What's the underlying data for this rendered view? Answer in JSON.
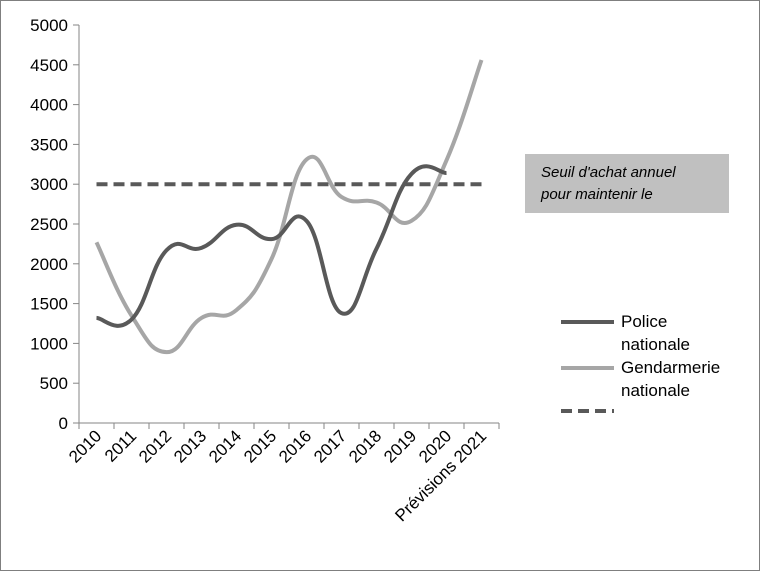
{
  "chart_data": {
    "type": "line",
    "categories": [
      "2010",
      "2011",
      "2012",
      "2013",
      "2014",
      "2015",
      "2016",
      "2017",
      "2018",
      "2019",
      "2020",
      "Prévisions 2021"
    ],
    "ylim": [
      0,
      5000
    ],
    "yticks": [
      0,
      500,
      1000,
      1500,
      2000,
      2500,
      3000,
      3500,
      4000,
      4500,
      5000
    ],
    "grid": false,
    "legend_position": "right",
    "series": [
      {
        "name": "Police nationale",
        "name_lines": [
          "Police",
          "nationale"
        ],
        "color": "#595959",
        "style": "solid",
        "smooth": true,
        "values": [
          1320,
          1300,
          2170,
          2200,
          2490,
          2310,
          2540,
          1380,
          2190,
          3130,
          3140,
          null
        ]
      },
      {
        "name": "Gendarmerie nationale",
        "name_lines": [
          "Gendarmerie",
          "nationale"
        ],
        "color": "#a6a6a6",
        "style": "solid",
        "smooth": true,
        "values": [
          2270,
          1350,
          890,
          1320,
          1420,
          2060,
          3310,
          2840,
          2770,
          2540,
          3300,
          4560
        ]
      },
      {
        "name": "",
        "name_lines": [],
        "color": "#595959",
        "style": "dashed",
        "smooth": false,
        "values": [
          3000,
          3000,
          3000,
          3000,
          3000,
          3000,
          3000,
          3000,
          3000,
          3000,
          3000,
          3000
        ]
      }
    ],
    "annotation": {
      "lines": [
        "Seuil d'achat annuel",
        "pour  maintenir le"
      ],
      "background": "#c0c0c0"
    }
  }
}
